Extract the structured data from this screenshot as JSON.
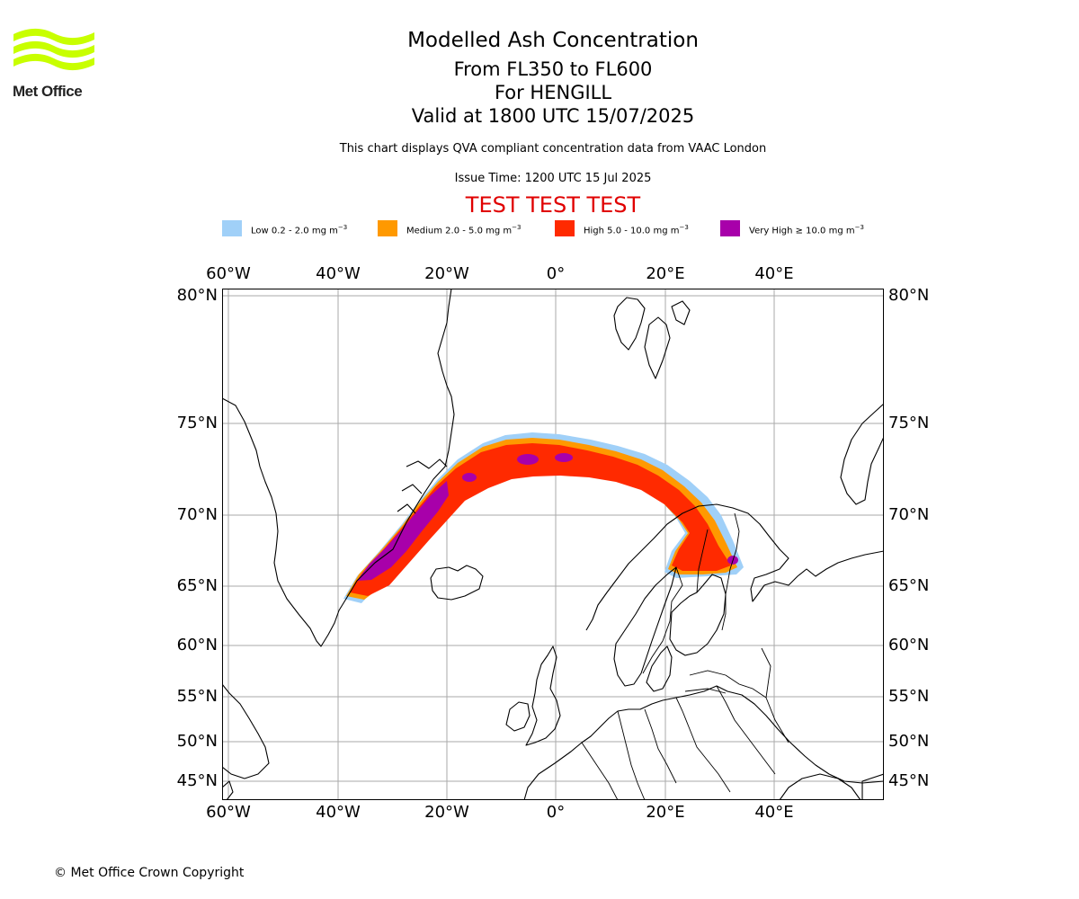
{
  "logo": {
    "text": "Met Office"
  },
  "header": {
    "title": "Modelled Ash Concentration",
    "levels": "From FL350 to FL600",
    "volcano": "For HENGILL",
    "valid": "Valid at 1800 UTC 15/07/2025",
    "description": "This chart displays QVA compliant concentration data from VAAC London",
    "issue_time": "Issue Time: 1200 UTC 15 Jul 2025",
    "test_banner": "TEST TEST TEST"
  },
  "legend": [
    {
      "label": "Low 0.2 - 2.0 mg m",
      "sup": "−3",
      "color": "#a0d0f8"
    },
    {
      "label": "Medium 2.0 - 5.0 mg m",
      "sup": "−3",
      "color": "#ff9900"
    },
    {
      "label": "High 5.0 - 10.0 mg m",
      "sup": "−3",
      "color": "#ff2a00"
    },
    {
      "label": "Very High  ≥  10.0 mg m",
      "sup": "−3",
      "color": "#a800aa"
    }
  ],
  "map": {
    "lon_ticks": [
      {
        "value": -60,
        "label": "60°W"
      },
      {
        "value": -40,
        "label": "40°W"
      },
      {
        "value": -20,
        "label": "20°W"
      },
      {
        "value": 0,
        "label": "0°"
      },
      {
        "value": 20,
        "label": "20°E"
      },
      {
        "value": 40,
        "label": "40°E"
      }
    ],
    "lat_ticks": [
      {
        "value": 80,
        "label": "80°N"
      },
      {
        "value": 75,
        "label": "75°N"
      },
      {
        "value": 70,
        "label": "70°N"
      },
      {
        "value": 65,
        "label": "65°N"
      },
      {
        "value": 60,
        "label": "60°N"
      },
      {
        "value": 55,
        "label": "55°N"
      },
      {
        "value": 50,
        "label": "50°N"
      },
      {
        "value": 45,
        "label": "45°N"
      }
    ],
    "colors": {
      "coast": "#000000",
      "grid": "#aaaaaa",
      "frame": "#000000"
    }
  },
  "copyright": "© Met Office Crown Copyright"
}
